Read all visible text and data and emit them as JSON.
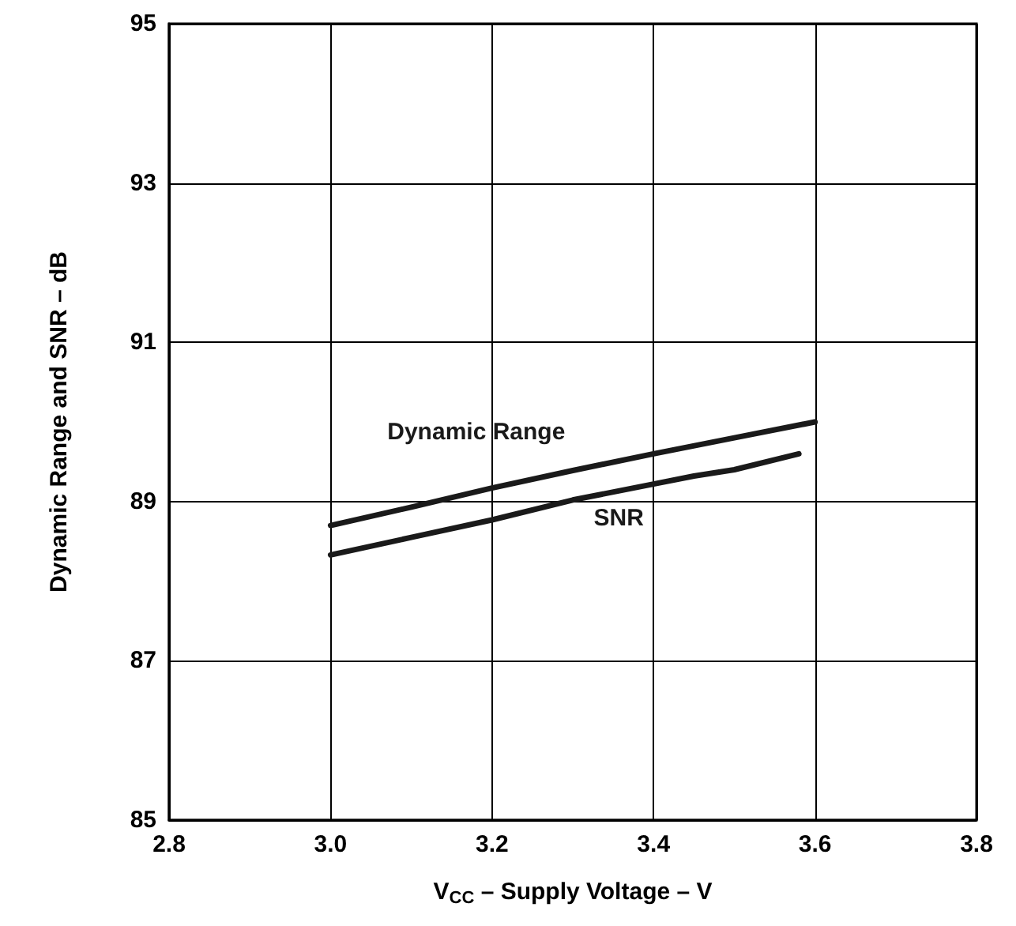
{
  "chart_data": {
    "type": "line",
    "xlabel": "V$_{CC}$ – Supply Voltage – V",
    "ylabel": "Dynamic Range and SNR – dB",
    "xlim": [
      2.8,
      3.8
    ],
    "xticks": [
      2.8,
      {
        "value": 3,
        "label": "3.0"
      },
      3.2,
      3.4,
      3.6,
      3.8
    ],
    "ylim": [
      85,
      95
    ],
    "yticks": [
      85,
      87,
      89,
      91,
      93,
      95
    ],
    "grid": true,
    "legend": false,
    "marker": "none",
    "line_style": "solid",
    "series": [
      {
        "name": "Dynamic Range",
        "color": "#1a1a1a",
        "x": [
          3.0,
          3.1,
          3.2,
          3.3,
          3.4,
          3.5,
          3.6
        ],
        "values": [
          88.7,
          88.93,
          89.17,
          89.39,
          89.6,
          89.8,
          90.0
        ]
      },
      {
        "name": "SNR",
        "color": "#1a1a1a",
        "x": [
          3.0,
          3.1,
          3.2,
          3.3,
          3.4,
          3.45,
          3.5,
          3.58
        ],
        "values": [
          88.33,
          88.55,
          88.77,
          89.02,
          89.22,
          89.32,
          89.4,
          89.6
        ]
      }
    ]
  }
}
